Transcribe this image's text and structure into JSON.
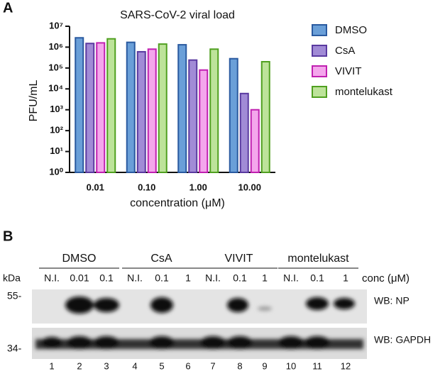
{
  "panels": [
    "A",
    "B"
  ],
  "chart_data": {
    "type": "bar",
    "title": "SARS-CoV-2 viral load",
    "x_label": "concentration (μM)",
    "y_label": "PFU/mL",
    "categories": [
      "0.01",
      "0.10",
      "1.00",
      "10.00"
    ],
    "series": [
      {
        "name": "DMSO",
        "color": "#6a9fd8",
        "edge": "#2a5aa0",
        "values": [
          2800000,
          1700000,
          1300000,
          280000
        ]
      },
      {
        "name": "CsA",
        "color": "#a18bd6",
        "edge": "#5a3aa0",
        "values": [
          1500000,
          600000,
          240000,
          6000
        ]
      },
      {
        "name": "VIVIT",
        "color": "#f4a6ec",
        "edge": "#c020b0",
        "values": [
          1600000,
          800000,
          80000,
          1000
        ]
      },
      {
        "name": "montelukast",
        "color": "#bde39a",
        "edge": "#50a020",
        "values": [
          2500000,
          1400000,
          800000,
          200000
        ]
      }
    ],
    "log_scale": true,
    "ylim": [
      1,
      10000000
    ],
    "yticks": [
      {
        "value": 1,
        "label": "10⁰"
      },
      {
        "value": 10,
        "label": "10¹"
      },
      {
        "value": 100,
        "label": "10²"
      },
      {
        "value": 1000,
        "label": "10³"
      },
      {
        "value": 10000,
        "label": "10⁴"
      },
      {
        "value": 100000,
        "label": "10⁵"
      },
      {
        "value": 1000000,
        "label": "10⁶"
      },
      {
        "value": 10000000,
        "label": "10⁷"
      }
    ],
    "legend": "right"
  },
  "blot": {
    "kda_label": "kDa",
    "conc_label": "conc (μM)",
    "groups": [
      "DMSO",
      "CsA",
      "VIVIT",
      "montelukast"
    ],
    "markers": [
      "55-",
      "34-"
    ],
    "rows": [
      "WB: NP",
      "WB: GAPDH"
    ],
    "lanes": [
      {
        "conc": "N.I.",
        "number": 1
      },
      {
        "conc": "0.01",
        "number": 2
      },
      {
        "conc": "0.1",
        "number": 3
      },
      {
        "conc": "N.I.",
        "number": 4
      },
      {
        "conc": "0.1",
        "number": 5
      },
      {
        "conc": "1",
        "number": 6
      },
      {
        "conc": "N.I.",
        "number": 7
      },
      {
        "conc": "0.1",
        "number": 8
      },
      {
        "conc": "1",
        "number": 9
      },
      {
        "conc": "N.I.",
        "number": 10
      },
      {
        "conc": "0.1",
        "number": 11
      },
      {
        "conc": "1",
        "number": 12
      }
    ]
  }
}
